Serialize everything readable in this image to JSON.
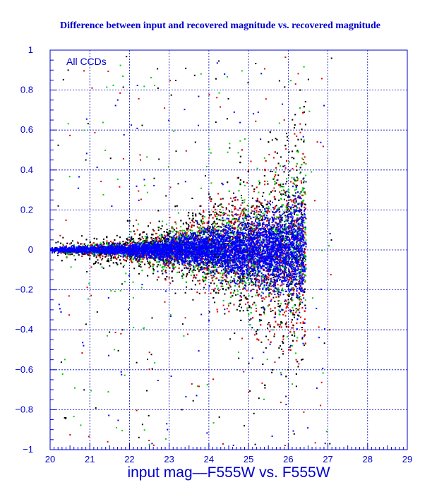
{
  "chart_data": {
    "type": "scatter",
    "title": "Difference between input and recovered magnitude vs. recovered magnitude",
    "xlabel": "input mag—F555W vs. F555W",
    "ylabel": "",
    "annotation": "All CCDs",
    "xlim": [
      20,
      29
    ],
    "ylim": [
      -1,
      1
    ],
    "x_ticks": [
      20,
      21,
      22,
      23,
      24,
      25,
      26,
      27,
      28,
      29
    ],
    "y_ticks": [
      -1,
      -0.8,
      -0.6,
      -0.4,
      -0.2,
      0,
      0.2,
      0.4,
      0.6,
      0.8,
      1
    ],
    "x_tick_labels": [
      "20",
      "21",
      "22",
      "23",
      "24",
      "25",
      "26",
      "27",
      "28",
      "29"
    ],
    "y_tick_labels": [
      "−1",
      "−0.8",
      "−0.6",
      "−0.4",
      "−0.2",
      "0",
      "0.2",
      "0.4",
      "0.6",
      "0.8",
      "1"
    ],
    "grid": true,
    "colors": {
      "axis": "#0000cc",
      "black_points": "#000000",
      "red_points": "#dd0000",
      "green_points": "#00cc00",
      "blue_points": "#0000ff"
    },
    "series": [
      {
        "color": "#000000",
        "x": [
          20.2,
          20.8,
          21.5,
          22.1,
          22.7,
          23.2,
          23.6,
          24.0,
          24.4,
          24.8,
          25.2,
          25.6,
          26.0,
          26.3
        ],
        "y": [
          0.04,
          0.07,
          -0.08,
          0.12,
          -0.15,
          0.22,
          -0.25,
          0.28,
          -0.32,
          0.35,
          -0.42,
          0.55,
          -0.6,
          0.8
        ]
      },
      {
        "color": "#dd0000",
        "x": [
          20.5,
          21.3,
          22.2,
          23.0,
          23.8,
          24.5,
          25.0,
          25.5,
          25.9,
          26.2
        ],
        "y": [
          0.03,
          -0.05,
          0.1,
          -0.14,
          0.22,
          -0.28,
          0.4,
          -0.45,
          0.65,
          -0.55
        ]
      },
      {
        "color": "#00cc00",
        "x": [
          21.0,
          22.5,
          23.5,
          24.2,
          24.9,
          25.4,
          25.8,
          26.1,
          26.4
        ],
        "y": [
          0.02,
          -0.06,
          0.12,
          -0.18,
          0.25,
          -0.32,
          0.42,
          -0.48,
          0.55
        ]
      },
      {
        "color": "#0000ff",
        "x": [
          20.1,
          21.0,
          22.0,
          23.0,
          24.0,
          24.5,
          25.0,
          25.5,
          26.0,
          26.4
        ],
        "y": [
          0.0,
          0.0,
          0.01,
          -0.02,
          0.03,
          -0.05,
          0.08,
          -0.1,
          0.15,
          -0.2
        ]
      }
    ]
  }
}
